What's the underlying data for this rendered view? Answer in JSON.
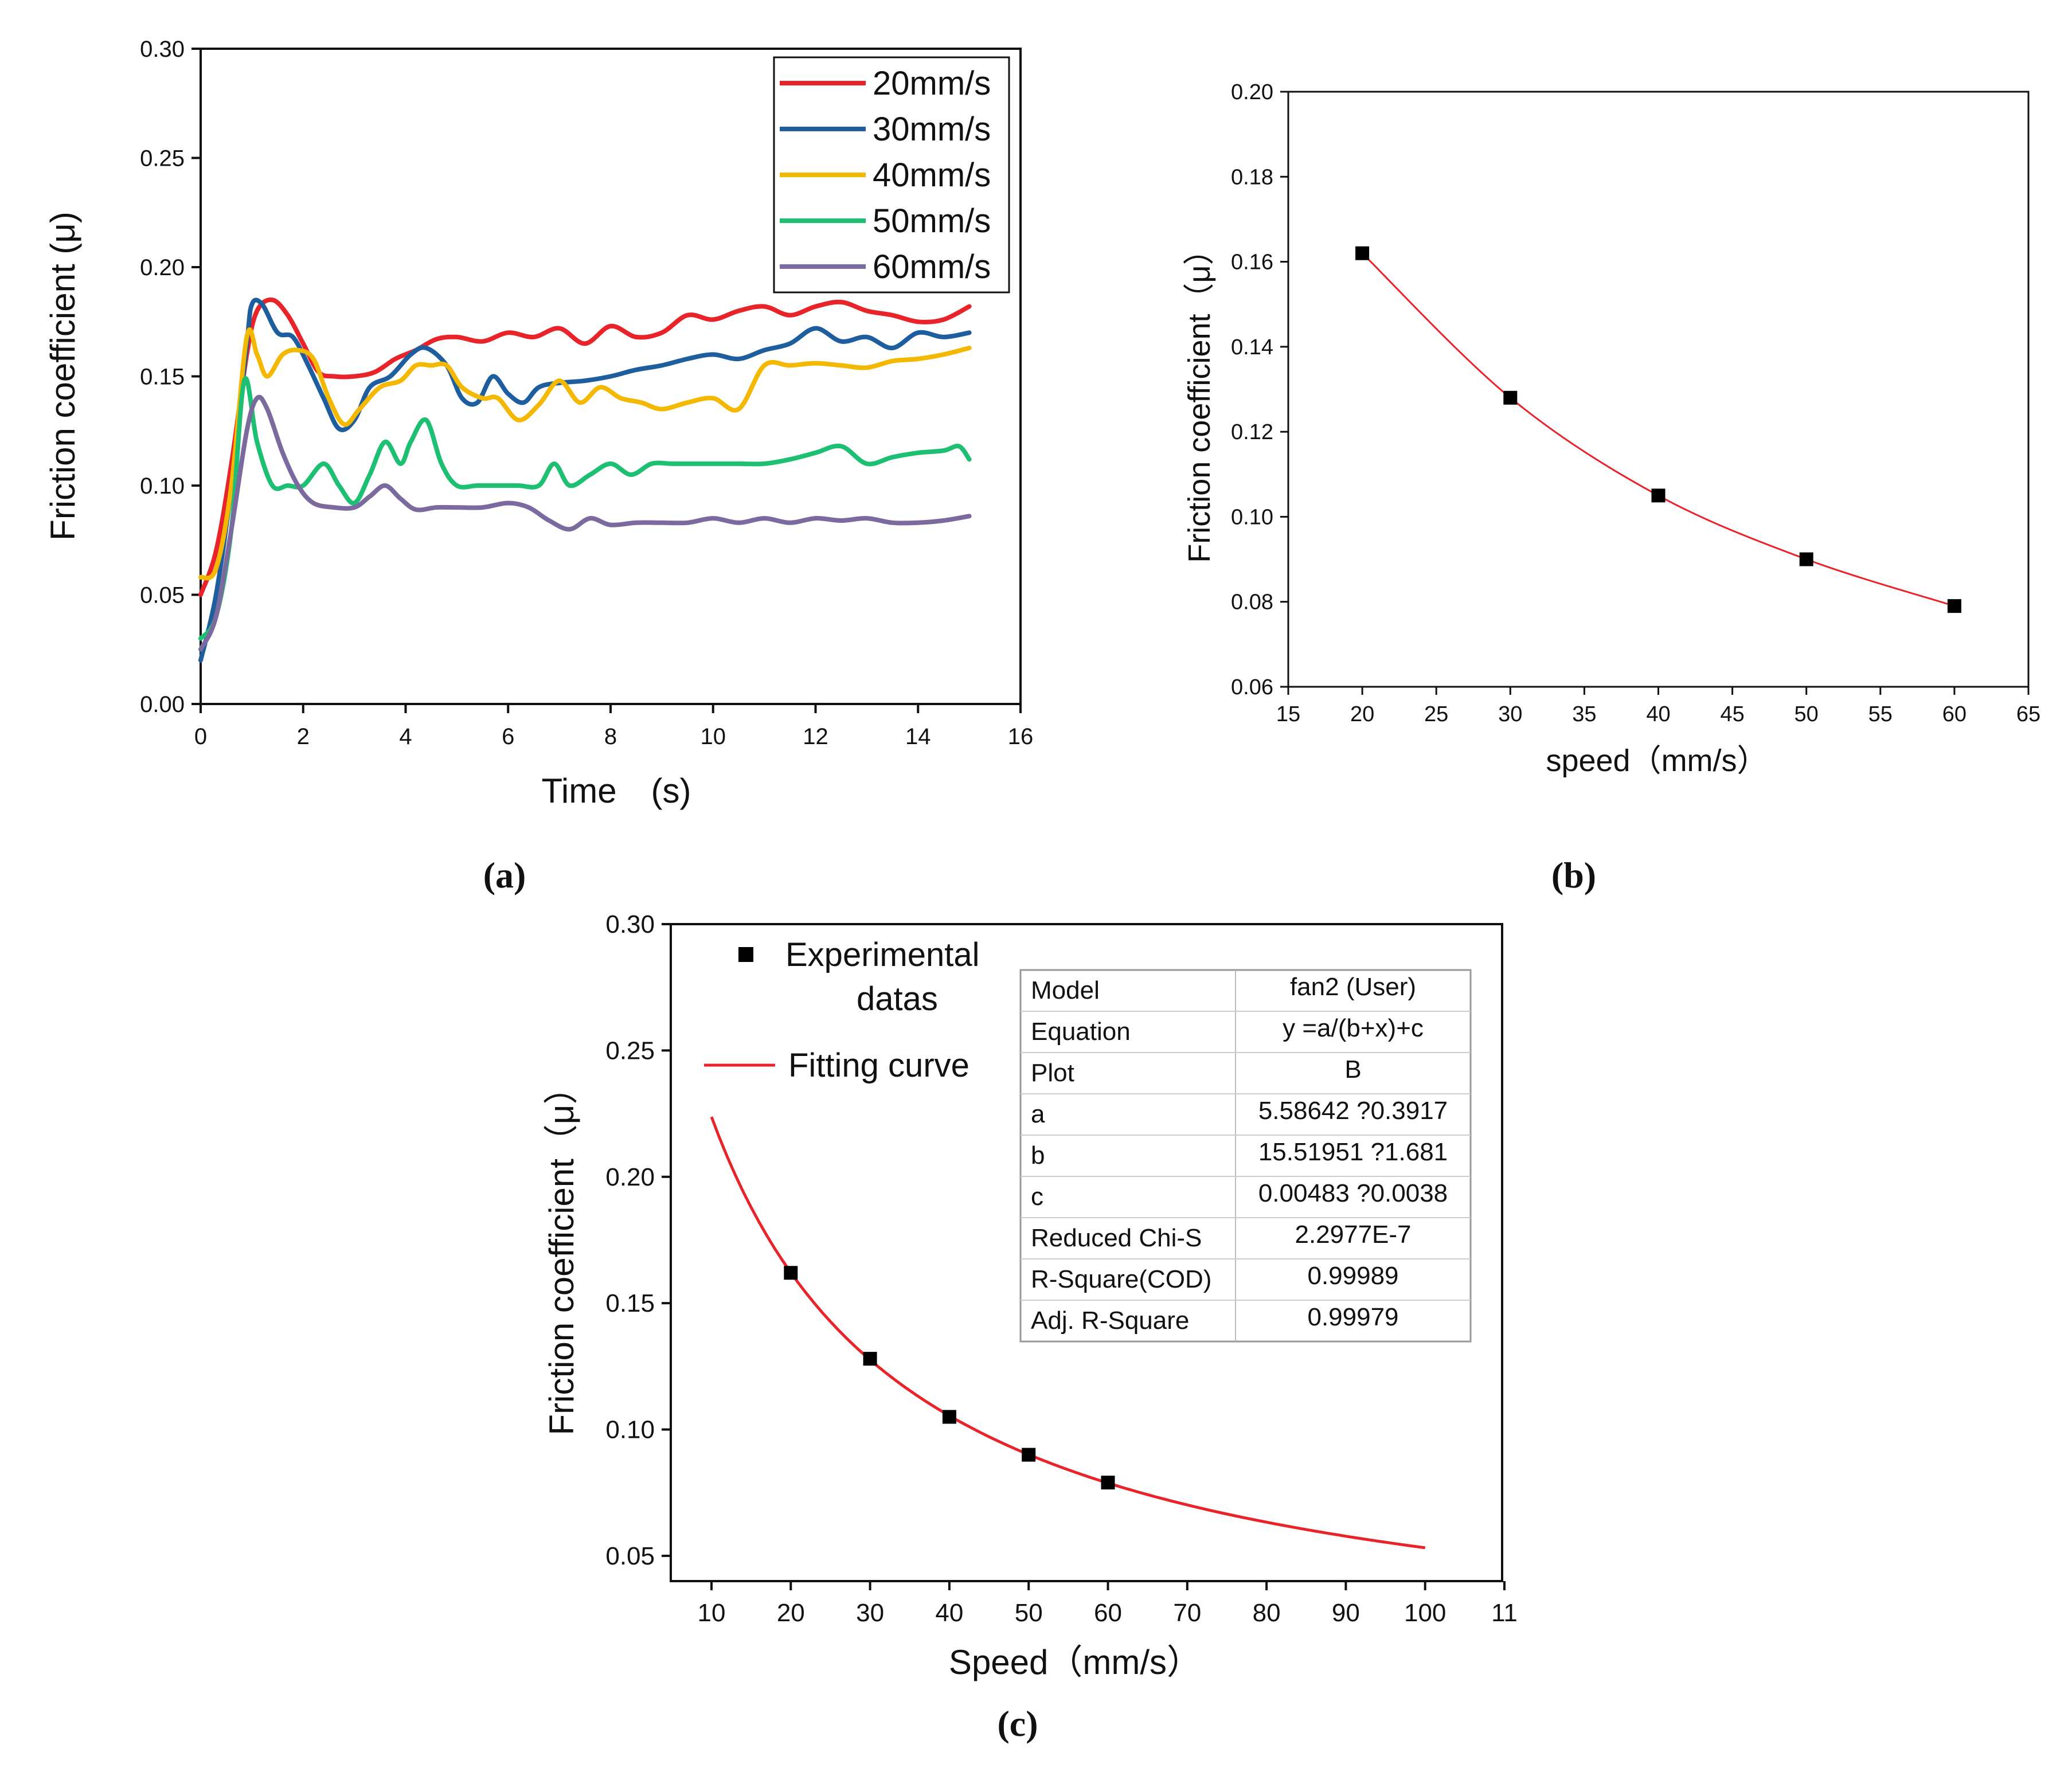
{
  "figure": {
    "panel_labels": [
      "(a)",
      "(b)",
      "(c)"
    ]
  },
  "chart_data": [
    {
      "id": "a",
      "type": "line",
      "xlabel": "Time　(s)",
      "ylabel": "Friction coefficient (μ)",
      "xlim": [
        0,
        16
      ],
      "ylim": [
        0.0,
        0.3
      ],
      "xticks": [
        "0",
        "2",
        "4",
        "6",
        "8",
        "10",
        "12",
        "14",
        "16"
      ],
      "yticks": [
        "0.00",
        "0.05",
        "0.10",
        "0.15",
        "0.20",
        "0.25",
        "0.30"
      ],
      "legend_position": "top-right",
      "series": [
        {
          "name": "20mm/s",
          "color": "#e8242a",
          "x": [
            0,
            0.3,
            0.6,
            0.9,
            1.1,
            1.4,
            1.7,
            2.0,
            2.3,
            2.6,
            3.0,
            3.4,
            3.8,
            4.2,
            4.6,
            5.0,
            5.5,
            6.0,
            6.5,
            7.0,
            7.5,
            8.0,
            8.5,
            9.0,
            9.5,
            10.0,
            10.5,
            11.0,
            11.5,
            12.0,
            12.5,
            13.0,
            13.5,
            14.0,
            14.5,
            15.0
          ],
          "y": [
            0.05,
            0.07,
            0.11,
            0.16,
            0.18,
            0.185,
            0.178,
            0.165,
            0.152,
            0.15,
            0.15,
            0.152,
            0.158,
            0.162,
            0.167,
            0.168,
            0.166,
            0.17,
            0.168,
            0.172,
            0.165,
            0.173,
            0.168,
            0.17,
            0.178,
            0.176,
            0.18,
            0.182,
            0.178,
            0.182,
            0.184,
            0.18,
            0.178,
            0.175,
            0.176,
            0.182
          ]
        },
        {
          "name": "30mm/s",
          "color": "#1f5e9e",
          "x": [
            0,
            0.3,
            0.6,
            0.9,
            1.0,
            1.2,
            1.5,
            1.8,
            2.1,
            2.4,
            2.7,
            3.0,
            3.3,
            3.7,
            4.1,
            4.4,
            4.8,
            5.1,
            5.4,
            5.7,
            6.0,
            6.3,
            6.6,
            7.0,
            7.5,
            8.0,
            8.5,
            9.0,
            9.5,
            10.0,
            10.5,
            11.0,
            11.5,
            12.0,
            12.5,
            13.0,
            13.5,
            14.0,
            14.5,
            15.0
          ],
          "y": [
            0.02,
            0.05,
            0.1,
            0.165,
            0.183,
            0.183,
            0.17,
            0.168,
            0.155,
            0.14,
            0.126,
            0.13,
            0.145,
            0.15,
            0.16,
            0.163,
            0.155,
            0.14,
            0.138,
            0.15,
            0.142,
            0.138,
            0.145,
            0.147,
            0.148,
            0.15,
            0.153,
            0.155,
            0.158,
            0.16,
            0.158,
            0.162,
            0.165,
            0.172,
            0.166,
            0.168,
            0.163,
            0.17,
            0.168,
            0.17
          ]
        },
        {
          "name": "40mm/s",
          "color": "#f5b800",
          "x": [
            0,
            0.3,
            0.6,
            0.9,
            1.1,
            1.3,
            1.6,
            1.9,
            2.2,
            2.5,
            2.8,
            3.1,
            3.5,
            3.9,
            4.2,
            4.5,
            4.8,
            5.1,
            5.5,
            5.8,
            6.2,
            6.6,
            7.0,
            7.4,
            7.8,
            8.2,
            8.6,
            9.0,
            9.5,
            10.0,
            10.5,
            11.0,
            11.5,
            12.0,
            12.5,
            13.0,
            13.5,
            14.0,
            14.5,
            15.0
          ],
          "y": [
            0.058,
            0.062,
            0.1,
            0.168,
            0.16,
            0.15,
            0.16,
            0.162,
            0.158,
            0.14,
            0.128,
            0.135,
            0.145,
            0.148,
            0.155,
            0.155,
            0.155,
            0.145,
            0.14,
            0.14,
            0.13,
            0.137,
            0.148,
            0.138,
            0.145,
            0.14,
            0.138,
            0.135,
            0.138,
            0.14,
            0.135,
            0.155,
            0.155,
            0.156,
            0.155,
            0.154,
            0.157,
            0.158,
            0.16,
            0.163
          ]
        },
        {
          "name": "50mm/s",
          "color": "#1dbf73",
          "x": [
            0,
            0.3,
            0.6,
            0.85,
            1.1,
            1.4,
            1.7,
            2.0,
            2.4,
            2.7,
            3.0,
            3.3,
            3.6,
            3.9,
            4.1,
            4.4,
            4.7,
            5.0,
            5.4,
            5.8,
            6.2,
            6.6,
            6.9,
            7.2,
            7.6,
            8.0,
            8.4,
            8.8,
            9.2,
            9.6,
            10.0,
            10.5,
            11.0,
            11.5,
            12.0,
            12.5,
            13.0,
            13.5,
            14.0,
            14.5,
            14.8,
            15.0
          ],
          "y": [
            0.03,
            0.04,
            0.08,
            0.148,
            0.12,
            0.1,
            0.1,
            0.1,
            0.11,
            0.1,
            0.092,
            0.105,
            0.12,
            0.11,
            0.12,
            0.13,
            0.11,
            0.1,
            0.1,
            0.1,
            0.1,
            0.1,
            0.11,
            0.1,
            0.105,
            0.11,
            0.105,
            0.11,
            0.11,
            0.11,
            0.11,
            0.11,
            0.11,
            0.112,
            0.115,
            0.118,
            0.11,
            0.113,
            0.115,
            0.116,
            0.118,
            0.112
          ]
        },
        {
          "name": "60mm/s",
          "color": "#7a6a9e",
          "x": [
            0,
            0.3,
            0.6,
            0.9,
            1.1,
            1.3,
            1.6,
            1.9,
            2.2,
            2.6,
            3.0,
            3.3,
            3.6,
            3.9,
            4.2,
            4.6,
            5.0,
            5.5,
            6.0,
            6.4,
            6.8,
            7.2,
            7.6,
            8.0,
            8.5,
            9.0,
            9.5,
            10.0,
            10.5,
            11.0,
            11.5,
            12.0,
            12.5,
            13.0,
            13.5,
            14.0,
            14.5,
            15.0
          ],
          "y": [
            0.025,
            0.04,
            0.08,
            0.125,
            0.14,
            0.135,
            0.115,
            0.1,
            0.092,
            0.09,
            0.09,
            0.095,
            0.1,
            0.094,
            0.089,
            0.09,
            0.09,
            0.09,
            0.092,
            0.09,
            0.084,
            0.08,
            0.085,
            0.082,
            0.083,
            0.083,
            0.083,
            0.085,
            0.083,
            0.085,
            0.083,
            0.085,
            0.084,
            0.085,
            0.083,
            0.083,
            0.084,
            0.086
          ]
        }
      ]
    },
    {
      "id": "b",
      "type": "line",
      "xlabel": "speed（mm/s）",
      "ylabel": "Friction coefficient（μ）",
      "xlim": [
        15,
        65
      ],
      "ylim": [
        0.06,
        0.2
      ],
      "xticks": [
        "15",
        "20",
        "25",
        "30",
        "35",
        "40",
        "45",
        "50",
        "55",
        "60",
        "65"
      ],
      "yticks": [
        "0.06",
        "0.08",
        "0.10",
        "0.12",
        "0.14",
        "0.16",
        "0.18",
        "0.20"
      ],
      "line_color": "#e8242a",
      "marker_color": "#000000",
      "x": [
        20,
        30,
        40,
        50,
        60
      ],
      "y": [
        0.162,
        0.128,
        0.105,
        0.09,
        0.079
      ]
    },
    {
      "id": "c",
      "type": "scatter",
      "xlabel": "Speed（mm/s）",
      "ylabel": "Friction coefficient（μ）",
      "xlim": [
        5,
        110
      ],
      "ylim": [
        0.04,
        0.3
      ],
      "xticks": [
        "10",
        "20",
        "30",
        "40",
        "50",
        "60",
        "70",
        "80",
        "90",
        "100",
        "11"
      ],
      "yticks": [
        "0.05",
        "0.10",
        "0.15",
        "0.20",
        "0.25",
        "0.30"
      ],
      "legend": {
        "position": "top-left",
        "experimental_label_1": "Experimental",
        "experimental_label_2": "datas",
        "fit_label": "Fitting curve"
      },
      "points": {
        "x": [
          20,
          30,
          40,
          50,
          60
        ],
        "y": [
          0.162,
          0.128,
          0.105,
          0.09,
          0.079
        ]
      },
      "fit": {
        "a": 5.58642,
        "b": 15.51951,
        "c": 0.00483,
        "x_range": [
          10,
          100
        ],
        "color": "#e8242a"
      },
      "table": [
        [
          "Model",
          "fan2 (User)"
        ],
        [
          "Equation",
          "y =a/(b+x)+c"
        ],
        [
          "Plot",
          "B"
        ],
        [
          "a",
          "5.58642 ?0.3917"
        ],
        [
          "b",
          "15.51951 ?1.681"
        ],
        [
          "c",
          "0.00483 ?0.0038"
        ],
        [
          "Reduced Chi-S",
          "2.2977E-7"
        ],
        [
          "R-Square(COD)",
          "0.99989"
        ],
        [
          "Adj. R-Square",
          "0.99979"
        ]
      ]
    }
  ]
}
